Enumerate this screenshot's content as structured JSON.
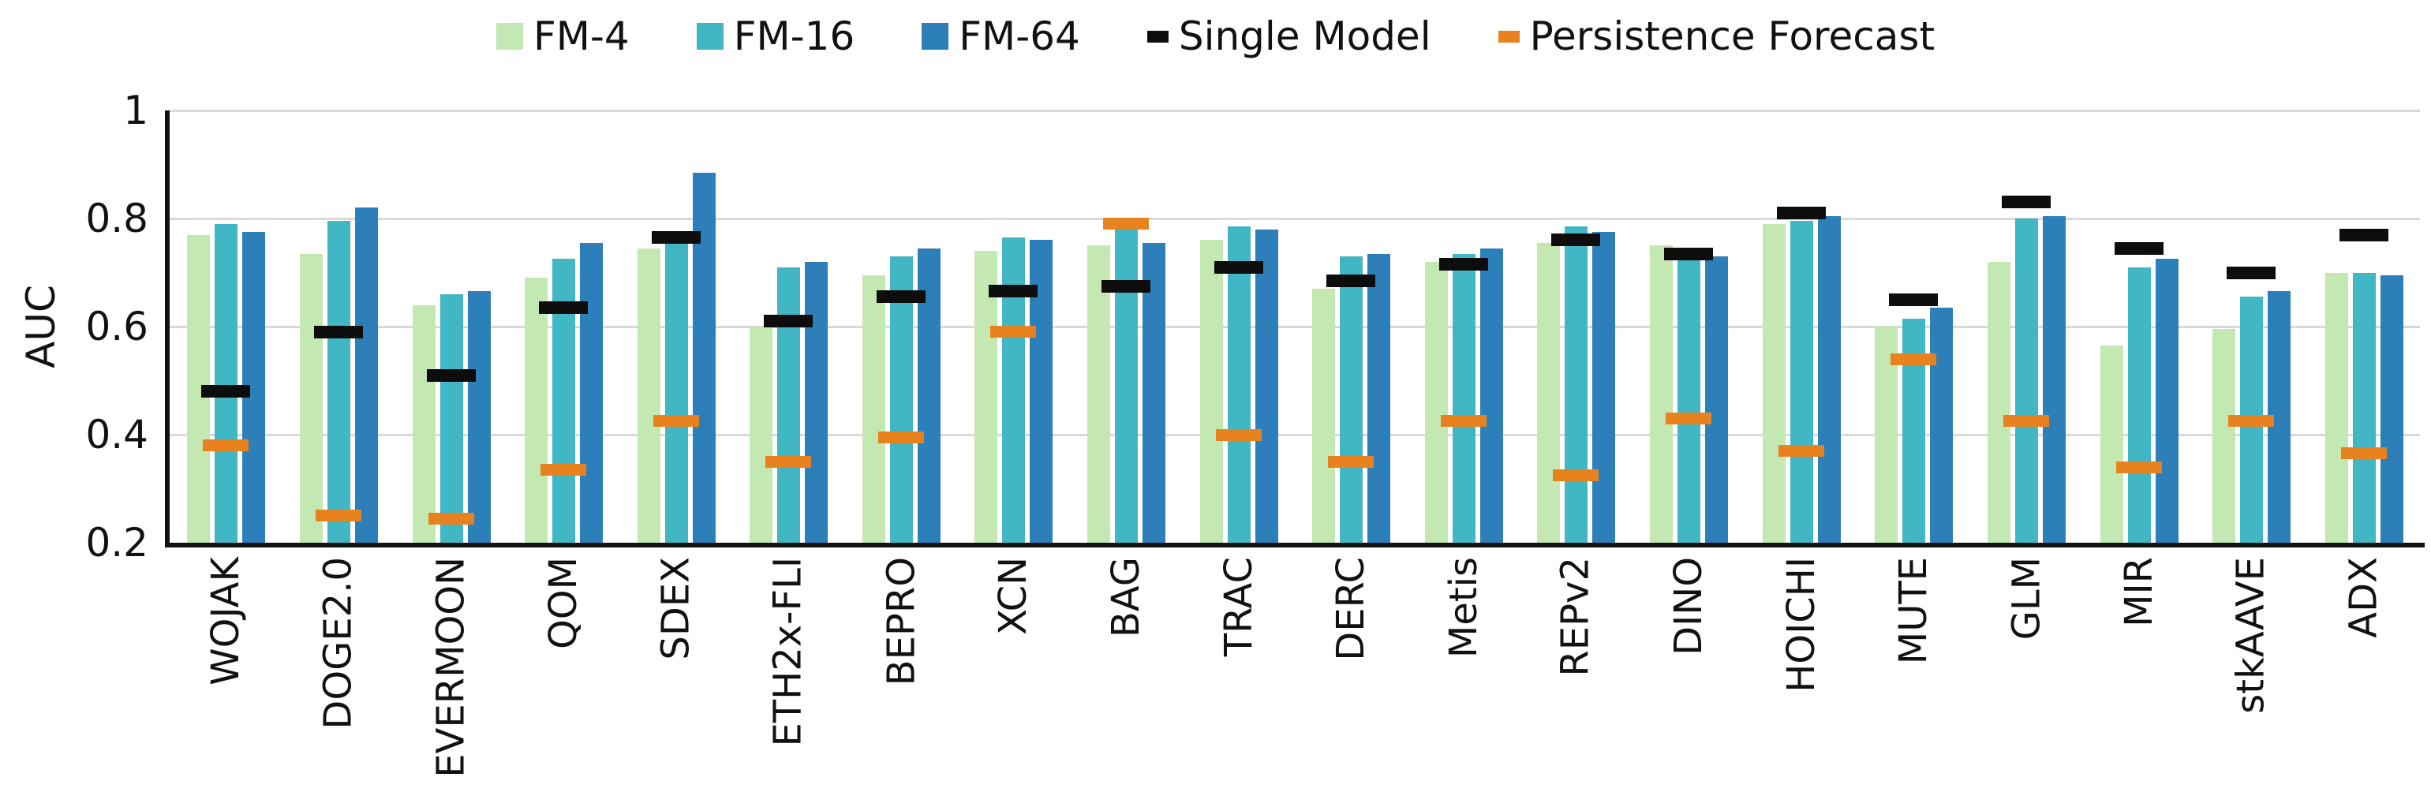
{
  "chart_data": {
    "type": "bar",
    "title": "",
    "xlabel": "",
    "ylabel": "AUC",
    "ylim": [
      0.2,
      1.0
    ],
    "yticks": [
      0.2,
      0.4,
      0.6,
      0.8,
      1.0
    ],
    "ytick_labels": [
      "0.2",
      "0.4",
      "0.6",
      "0.8",
      "1"
    ],
    "grid": true,
    "legend_position": "top",
    "bar_colors": {
      "fm4": "#c4e8b1",
      "fm16": "#41b6c4",
      "fm64": "#2c7fb8"
    },
    "marker_colors": {
      "single_model": "#0d0d0d",
      "persistence": "#e8821e"
    },
    "categories": [
      "WOJAK",
      "DOGE2.0",
      "EVERMOON",
      "QOM",
      "SDEX",
      "ETH2x-FLI",
      "BEPRO",
      "XCN",
      "BAG",
      "TRAC",
      "DERC",
      "Metis",
      "REPv2",
      "DINO",
      "HOICHI",
      "MUTE",
      "GLM",
      "MIR",
      "stkAAVE",
      "ADX"
    ],
    "series": [
      {
        "name": "FM-4",
        "mark": "bar",
        "color": "#c4e8b1",
        "values": [
          0.77,
          0.735,
          0.64,
          0.69,
          0.745,
          0.6,
          0.695,
          0.74,
          0.75,
          0.76,
          0.67,
          0.72,
          0.755,
          0.75,
          0.79,
          0.6,
          0.72,
          0.565,
          0.595,
          0.7
        ]
      },
      {
        "name": "FM-16",
        "mark": "bar",
        "color": "#41b6c4",
        "values": [
          0.79,
          0.795,
          0.66,
          0.725,
          0.755,
          0.71,
          0.73,
          0.765,
          0.78,
          0.785,
          0.73,
          0.735,
          0.785,
          0.74,
          0.795,
          0.615,
          0.8,
          0.71,
          0.655,
          0.7
        ]
      },
      {
        "name": "FM-64",
        "mark": "bar",
        "color": "#2c7fb8",
        "values": [
          0.775,
          0.82,
          0.665,
          0.755,
          0.885,
          0.72,
          0.745,
          0.76,
          0.755,
          0.78,
          0.735,
          0.745,
          0.775,
          0.73,
          0.805,
          0.635,
          0.805,
          0.725,
          0.665,
          0.695
        ]
      },
      {
        "name": "Single Model",
        "mark": "dash",
        "color": "#0d0d0d",
        "values": [
          0.48,
          0.59,
          0.51,
          0.635,
          0.765,
          0.61,
          0.655,
          0.665,
          0.675,
          0.71,
          0.685,
          0.715,
          0.76,
          0.735,
          0.81,
          0.65,
          0.83,
          0.745,
          0.7,
          0.77
        ]
      },
      {
        "name": "Persistence Forecast",
        "mark": "dash",
        "color": "#e8821e",
        "values": [
          0.38,
          0.25,
          0.245,
          0.335,
          0.425,
          0.35,
          0.395,
          0.59,
          0.79,
          0.4,
          0.35,
          0.425,
          0.325,
          0.43,
          0.37,
          0.54,
          0.425,
          0.34,
          0.425,
          0.365
        ]
      }
    ]
  }
}
